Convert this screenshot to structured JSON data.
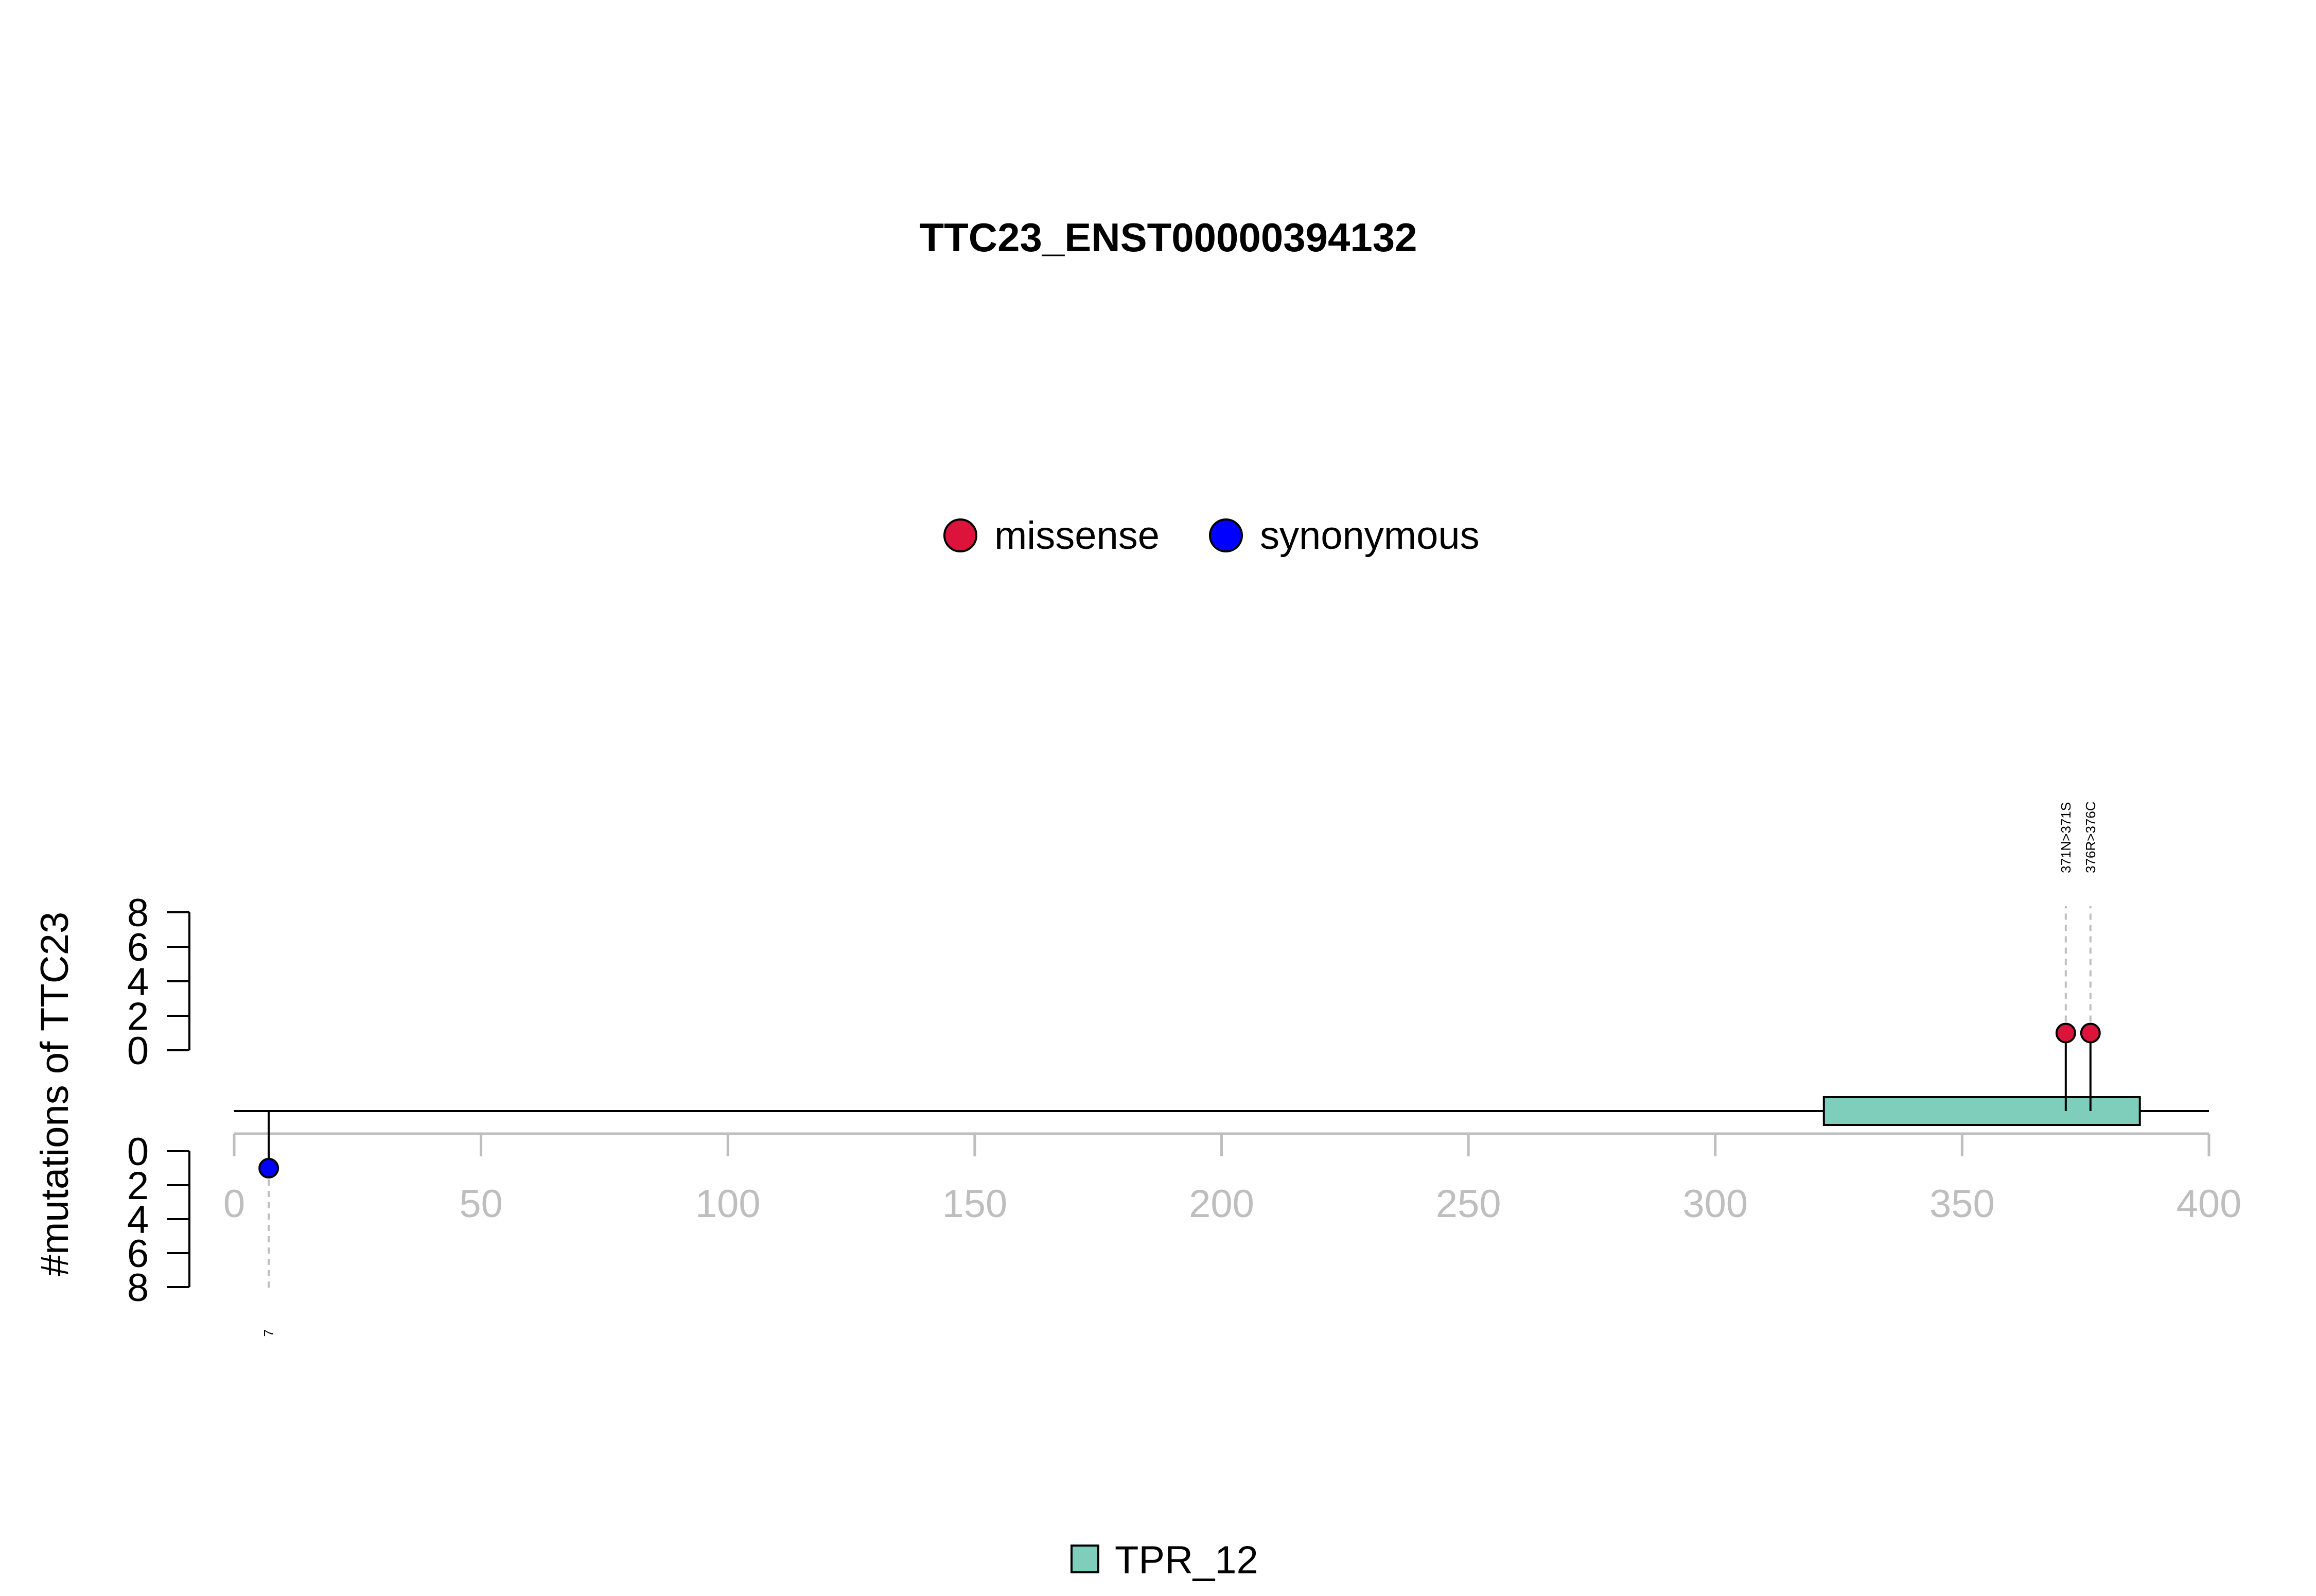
{
  "chart_data": {
    "type": "lollipop",
    "title": "TTC23_ENST00000394132",
    "ylabel": "#mutations of TTC23",
    "xlim": [
      0,
      400
    ],
    "x_ticks": [
      0,
      50,
      100,
      150,
      200,
      250,
      300,
      350,
      400
    ],
    "y_ticks": [
      0,
      2,
      4,
      6,
      8
    ],
    "ylim": [
      0,
      8
    ],
    "mutation_legend": [
      {
        "label": "missense",
        "color": "#DC143C"
      },
      {
        "label": "synonymous",
        "color": "#0000FF"
      }
    ],
    "domain_legend": [
      {
        "label": "TPR_12",
        "color": "#7FCDBB"
      }
    ],
    "domains": [
      {
        "name": "TPR_12",
        "start": 322,
        "end": 386,
        "color": "#7FCDBB"
      }
    ],
    "mutations": [
      {
        "position": 7,
        "count": 1,
        "type": "synonymous",
        "side": "bottom",
        "label": "7",
        "color": "#0000FF"
      },
      {
        "position": 371,
        "count": 1,
        "type": "missense",
        "side": "top",
        "label": "371N>371S",
        "color": "#DC143C"
      },
      {
        "position": 376,
        "count": 1,
        "type": "missense",
        "side": "top",
        "label": "376R>376C",
        "color": "#DC143C"
      }
    ],
    "protein_length": 400,
    "axis_color": "#BEBEBE"
  }
}
